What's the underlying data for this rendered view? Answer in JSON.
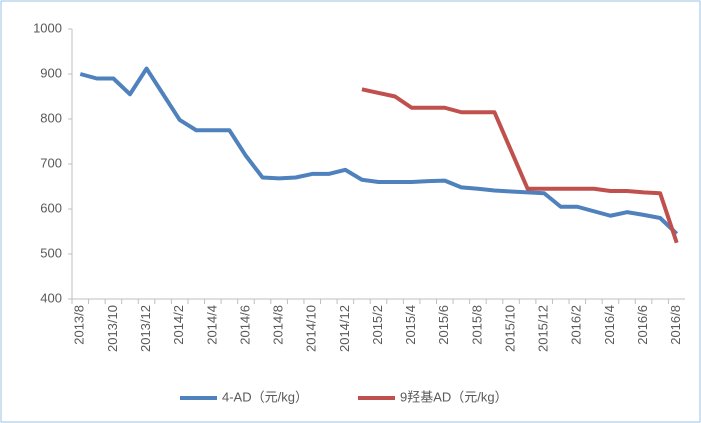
{
  "chart_data": {
    "type": "line",
    "categories": [
      "2013/8",
      null,
      "2013/10",
      null,
      "2013/12",
      null,
      "2014/2",
      null,
      "2014/4",
      null,
      "2014/6",
      null,
      "2014/8",
      null,
      "2014/10",
      null,
      "2014/12",
      null,
      "2015/2",
      null,
      "2015/4",
      null,
      "2015/6",
      null,
      "2015/8",
      null,
      "2015/10",
      null,
      "2015/12",
      null,
      "2016/2",
      null,
      "2016/4",
      null,
      "2016/6",
      null,
      "2016/8"
    ],
    "series": [
      {
        "name": "4-AD（元/kg）",
        "color": "#4f81bd",
        "values": [
          900,
          890,
          890,
          855,
          912,
          855,
          798,
          775,
          775,
          775,
          718,
          670,
          668,
          670,
          678,
          678,
          687,
          665,
          660,
          660,
          660,
          662,
          663,
          648,
          645,
          641,
          639,
          637,
          635,
          605,
          605,
          595,
          585,
          593,
          587,
          580,
          545
        ]
      },
      {
        "name": "9羟基AD（元/kg）",
        "color": "#c0504d",
        "values": [
          null,
          null,
          null,
          null,
          null,
          null,
          null,
          null,
          null,
          null,
          null,
          null,
          null,
          null,
          null,
          null,
          null,
          866,
          858,
          850,
          825,
          825,
          825,
          815,
          815,
          815,
          730,
          645,
          645,
          645,
          645,
          645,
          640,
          640,
          637,
          635,
          525
        ]
      }
    ],
    "ylim": [
      400,
      1000
    ],
    "yticks": [
      400,
      500,
      600,
      700,
      800,
      900,
      1000
    ],
    "grid": false
  }
}
